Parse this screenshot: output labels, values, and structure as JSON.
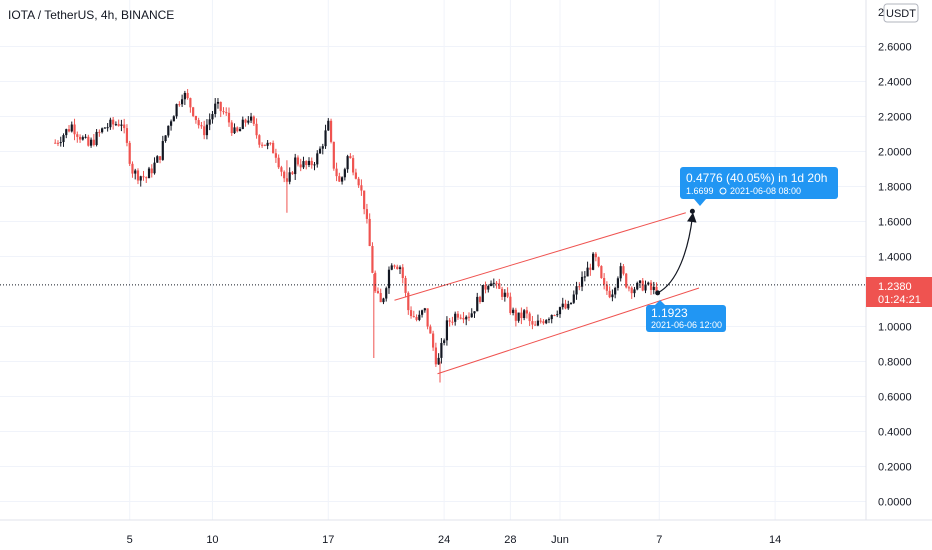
{
  "header": {
    "title": "IOTA / TetherUS, 4h, BINANCE",
    "currency_badge": "USDT"
  },
  "chart_data": {
    "type": "candlestick",
    "title": "IOTA / TetherUS, 4h, BINANCE",
    "y_axis": {
      "ticks": [
        "2.6000",
        "2.4000",
        "2.2000",
        "2.0000",
        "1.8000",
        "1.6000",
        "1.4000",
        "1.0000",
        "0.8000",
        "0.6000",
        "0.4000",
        "0.2000",
        "0.0000"
      ],
      "tick_values": [
        2.6,
        2.4,
        2.2,
        2.0,
        1.8,
        1.6,
        1.4,
        1.0,
        0.8,
        0.6,
        0.4,
        0.2,
        0.0
      ],
      "range": [
        -0.1,
        2.8
      ],
      "top_partial_label": "2"
    },
    "x_axis": {
      "ticks": [
        "5",
        "10",
        "17",
        "24",
        "28",
        "Jun",
        "7",
        "14"
      ],
      "tick_days": [
        -26,
        -21,
        -14,
        -7,
        -3,
        0,
        6,
        13
      ],
      "reference": "Jun 1, 2021"
    },
    "last_price": {
      "value": 1.238,
      "label": "1.2380",
      "countdown": "01:24:21",
      "color": "#ef5350"
    },
    "bull_color": "#131722",
    "bear_color": "#ef5350",
    "channel": {
      "color": "#ef5350",
      "upper": [
        [
          -10,
          1.15
        ],
        [
          7.6,
          1.65
        ]
      ],
      "lower": [
        [
          -7.4,
          0.73
        ],
        [
          8.4,
          1.22
        ]
      ]
    },
    "projection": {
      "start": {
        "day": 5.9,
        "price": 1.192
      },
      "end": {
        "day": 8.0,
        "price": 1.67
      },
      "color": "#131722"
    },
    "annotations": [
      {
        "name": "target",
        "lines": [
          "0.4776 (40.05%) in 1d 20h",
          "1.6699",
          "2021-06-08  08:00"
        ],
        "color": "#2196f3"
      },
      {
        "name": "entry",
        "lines": [
          "1.1923",
          "2021-06-06 12:00"
        ],
        "color": "#2196f3"
      }
    ],
    "price_path": [
      [
        -30.5,
        2.05
      ],
      [
        -29.5,
        2.15
      ],
      [
        -28.5,
        2.03
      ],
      [
        -27.5,
        2.14
      ],
      [
        -26.5,
        2.17
      ],
      [
        -25.8,
        1.88
      ],
      [
        -25.0,
        1.85
      ],
      [
        -24.2,
        1.97
      ],
      [
        -23.6,
        2.17
      ],
      [
        -22.8,
        2.34
      ],
      [
        -22.2,
        2.24
      ],
      [
        -21.6,
        2.1
      ],
      [
        -20.8,
        2.26
      ],
      [
        -20.2,
        2.21
      ],
      [
        -19.6,
        2.09
      ],
      [
        -18.8,
        2.2
      ],
      [
        -18.2,
        2.07
      ],
      [
        -17.2,
        2.0
      ],
      [
        -16.5,
        1.8
      ],
      [
        -16.0,
        1.95
      ],
      [
        -15.2,
        1.91
      ],
      [
        -14.6,
        1.98
      ],
      [
        -14.0,
        2.15
      ],
      [
        -13.7,
        1.93
      ],
      [
        -13.3,
        1.81
      ],
      [
        -12.8,
        1.98
      ],
      [
        -12.2,
        1.85
      ],
      [
        -11.8,
        1.68
      ],
      [
        -11.4,
        1.38
      ],
      [
        -11.2,
        1.2
      ],
      [
        -10.8,
        1.12
      ],
      [
        -10.2,
        1.38
      ],
      [
        -9.6,
        1.34
      ],
      [
        -9.2,
        1.1
      ],
      [
        -8.6,
        1.03
      ],
      [
        -8.2,
        1.1
      ],
      [
        -7.8,
        0.93
      ],
      [
        -7.4,
        0.78
      ],
      [
        -6.8,
        1.02
      ],
      [
        -6.2,
        1.08
      ],
      [
        -5.4,
        1.07
      ],
      [
        -4.8,
        1.18
      ],
      [
        -4.2,
        1.28
      ],
      [
        -3.8,
        1.21
      ],
      [
        -3.4,
        1.19
      ],
      [
        -3.0,
        1.1
      ],
      [
        -2.6,
        1.04
      ],
      [
        -2.1,
        1.08
      ],
      [
        -1.6,
        0.98
      ],
      [
        -1.2,
        1.03
      ],
      [
        -0.6,
        1.07
      ],
      [
        0.0,
        1.11
      ],
      [
        0.5,
        1.1
      ],
      [
        1.0,
        1.21
      ],
      [
        1.6,
        1.31
      ],
      [
        2.1,
        1.4
      ],
      [
        2.6,
        1.22
      ],
      [
        3.1,
        1.19
      ],
      [
        3.6,
        1.33
      ],
      [
        4.1,
        1.23
      ],
      [
        4.6,
        1.22
      ],
      [
        5.1,
        1.24
      ],
      [
        5.6,
        1.2
      ],
      [
        5.9,
        1.238
      ]
    ],
    "spikes": [
      {
        "day": -11.25,
        "high": 1.3,
        "low": 0.82
      },
      {
        "day": -16.5,
        "high": 1.95,
        "low": 1.65
      },
      {
        "day": -7.25,
        "high": 0.8,
        "low": 0.68
      }
    ]
  }
}
